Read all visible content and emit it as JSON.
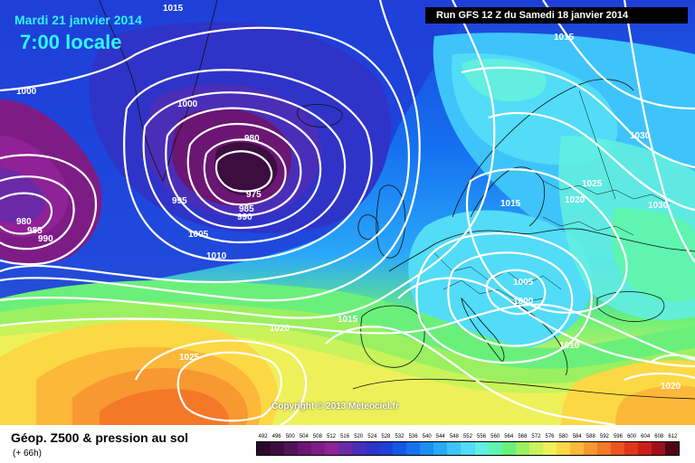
{
  "header": {
    "date": "Mardi 21 janvier 2014",
    "time": "7:00 locale",
    "run": "Run GFS 12 Z du Samedi 18 janvier 2014"
  },
  "copyright": "Copyright © 2013 Meteociel.fr",
  "footer": {
    "title": "Géop. Z500 & pression au sol",
    "lead": "(+ 66h)"
  },
  "scale": {
    "labels": [
      "492",
      "496",
      "500",
      "504",
      "508",
      "512",
      "516",
      "520",
      "524",
      "528",
      "532",
      "536",
      "540",
      "544",
      "548",
      "552",
      "556",
      "560",
      "564",
      "568",
      "572",
      "576",
      "580",
      "584",
      "588",
      "592",
      "596",
      "600",
      "604",
      "608",
      "612"
    ],
    "colors": [
      "#2a0a2a",
      "#3c0e40",
      "#521258",
      "#6a1672",
      "#7e1c86",
      "#8e2296",
      "#6a2aa8",
      "#4a2eb8",
      "#2f33c8",
      "#1f3fd8",
      "#1556e6",
      "#1571f0",
      "#1a8ef5",
      "#2aa8fa",
      "#3ec4fb",
      "#52dcf8",
      "#62eee0",
      "#5ff5b0",
      "#6af07a",
      "#9af060",
      "#c8f35a",
      "#eef05a",
      "#fcd845",
      "#fcb83a",
      "#f89830",
      "#f47828",
      "#ec5420",
      "#e03618",
      "#cc1e18",
      "#a0101a",
      "#500612"
    ]
  },
  "isobars": [
    {
      "label": "1015"
    },
    {
      "label": "1015"
    },
    {
      "label": "1000"
    },
    {
      "label": "1000"
    },
    {
      "label": "980"
    },
    {
      "label": "975"
    },
    {
      "label": "985"
    },
    {
      "label": "990"
    },
    {
      "label": "995"
    },
    {
      "label": "1005"
    },
    {
      "label": "1010"
    },
    {
      "label": "980"
    },
    {
      "label": "985"
    },
    {
      "label": "990"
    },
    {
      "label": "1030"
    },
    {
      "label": "1025"
    },
    {
      "label": "1020"
    },
    {
      "label": "1015"
    },
    {
      "label": "1030"
    },
    {
      "label": "1005"
    },
    {
      "label": "1000"
    },
    {
      "label": "1010"
    },
    {
      "label": "1015"
    },
    {
      "label": "1020"
    },
    {
      "label": "1025"
    },
    {
      "label": "1020"
    }
  ]
}
